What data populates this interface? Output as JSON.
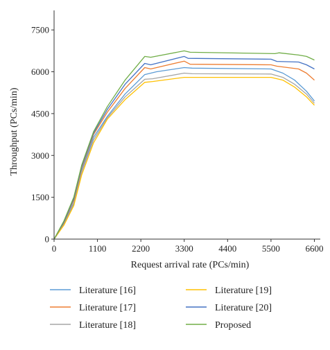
{
  "chart_data": {
    "type": "line",
    "title": "",
    "xlabel": "Request arrival rate (PCs/min)",
    "ylabel": "Throughput (PCs/min)",
    "xlim": [
      0,
      6750
    ],
    "ylim": [
      0,
      8200
    ],
    "xticks": [
      0,
      1100,
      2200,
      3300,
      4400,
      5500,
      6600
    ],
    "yticks": [
      0,
      1500,
      3000,
      4500,
      6000,
      7500
    ],
    "grid": false,
    "legend_position": "bottom",
    "series": [
      {
        "name": "Literature [16]",
        "color": "#5b9bd5",
        "points": [
          [
            0,
            0
          ],
          [
            250,
            550
          ],
          [
            500,
            1300
          ],
          [
            700,
            2450
          ],
          [
            1000,
            3650
          ],
          [
            1350,
            4400
          ],
          [
            1800,
            5200
          ],
          [
            2300,
            5900
          ],
          [
            2600,
            6000
          ],
          [
            3300,
            6150
          ],
          [
            3500,
            6130
          ],
          [
            5500,
            6100
          ],
          [
            5800,
            5950
          ],
          [
            6100,
            5700
          ],
          [
            6400,
            5300
          ],
          [
            6600,
            4950
          ]
        ]
      },
      {
        "name": "Literature [17]",
        "color": "#ed7d31",
        "points": [
          [
            0,
            0
          ],
          [
            250,
            600
          ],
          [
            500,
            1400
          ],
          [
            700,
            2550
          ],
          [
            1000,
            3750
          ],
          [
            1350,
            4550
          ],
          [
            1800,
            5400
          ],
          [
            2300,
            6150
          ],
          [
            2450,
            6100
          ],
          [
            3300,
            6380
          ],
          [
            3450,
            6270
          ],
          [
            5500,
            6250
          ],
          [
            5650,
            6200
          ],
          [
            6200,
            6100
          ],
          [
            6400,
            5950
          ],
          [
            6600,
            5700
          ]
        ]
      },
      {
        "name": "Literature [18]",
        "color": "#a5a5a5",
        "points": [
          [
            0,
            0
          ],
          [
            250,
            520
          ],
          [
            500,
            1250
          ],
          [
            700,
            2400
          ],
          [
            1000,
            3550
          ],
          [
            1350,
            4350
          ],
          [
            1800,
            5100
          ],
          [
            2300,
            5730
          ],
          [
            2500,
            5750
          ],
          [
            3300,
            5950
          ],
          [
            3500,
            5930
          ],
          [
            5500,
            5920
          ],
          [
            5800,
            5800
          ],
          [
            6100,
            5550
          ],
          [
            6400,
            5200
          ],
          [
            6600,
            4870
          ]
        ]
      },
      {
        "name": "Literature [19]",
        "color": "#ffc000",
        "points": [
          [
            0,
            0
          ],
          [
            250,
            500
          ],
          [
            500,
            1200
          ],
          [
            700,
            2300
          ],
          [
            1000,
            3450
          ],
          [
            1350,
            4300
          ],
          [
            1800,
            5000
          ],
          [
            2300,
            5620
          ],
          [
            2500,
            5650
          ],
          [
            3300,
            5800
          ],
          [
            3500,
            5800
          ],
          [
            5500,
            5800
          ],
          [
            5800,
            5700
          ],
          [
            6100,
            5450
          ],
          [
            6400,
            5100
          ],
          [
            6600,
            4800
          ]
        ]
      },
      {
        "name": "Literature [20]",
        "color": "#4472c4",
        "points": [
          [
            0,
            0
          ],
          [
            250,
            620
          ],
          [
            500,
            1450
          ],
          [
            700,
            2600
          ],
          [
            1000,
            3800
          ],
          [
            1350,
            4650
          ],
          [
            1800,
            5550
          ],
          [
            2300,
            6300
          ],
          [
            2450,
            6250
          ],
          [
            3300,
            6550
          ],
          [
            3400,
            6480
          ],
          [
            5500,
            6450
          ],
          [
            5650,
            6370
          ],
          [
            6200,
            6350
          ],
          [
            6400,
            6250
          ],
          [
            6600,
            6100
          ]
        ]
      },
      {
        "name": "Proposed",
        "color": "#70ad47",
        "points": [
          [
            0,
            0
          ],
          [
            250,
            650
          ],
          [
            500,
            1500
          ],
          [
            700,
            2650
          ],
          [
            1000,
            3850
          ],
          [
            1350,
            4750
          ],
          [
            1800,
            5700
          ],
          [
            2300,
            6550
          ],
          [
            2450,
            6520
          ],
          [
            3300,
            6750
          ],
          [
            3450,
            6700
          ],
          [
            5600,
            6650
          ],
          [
            5700,
            6680
          ],
          [
            6200,
            6600
          ],
          [
            6400,
            6550
          ],
          [
            6600,
            6420
          ]
        ]
      }
    ]
  }
}
